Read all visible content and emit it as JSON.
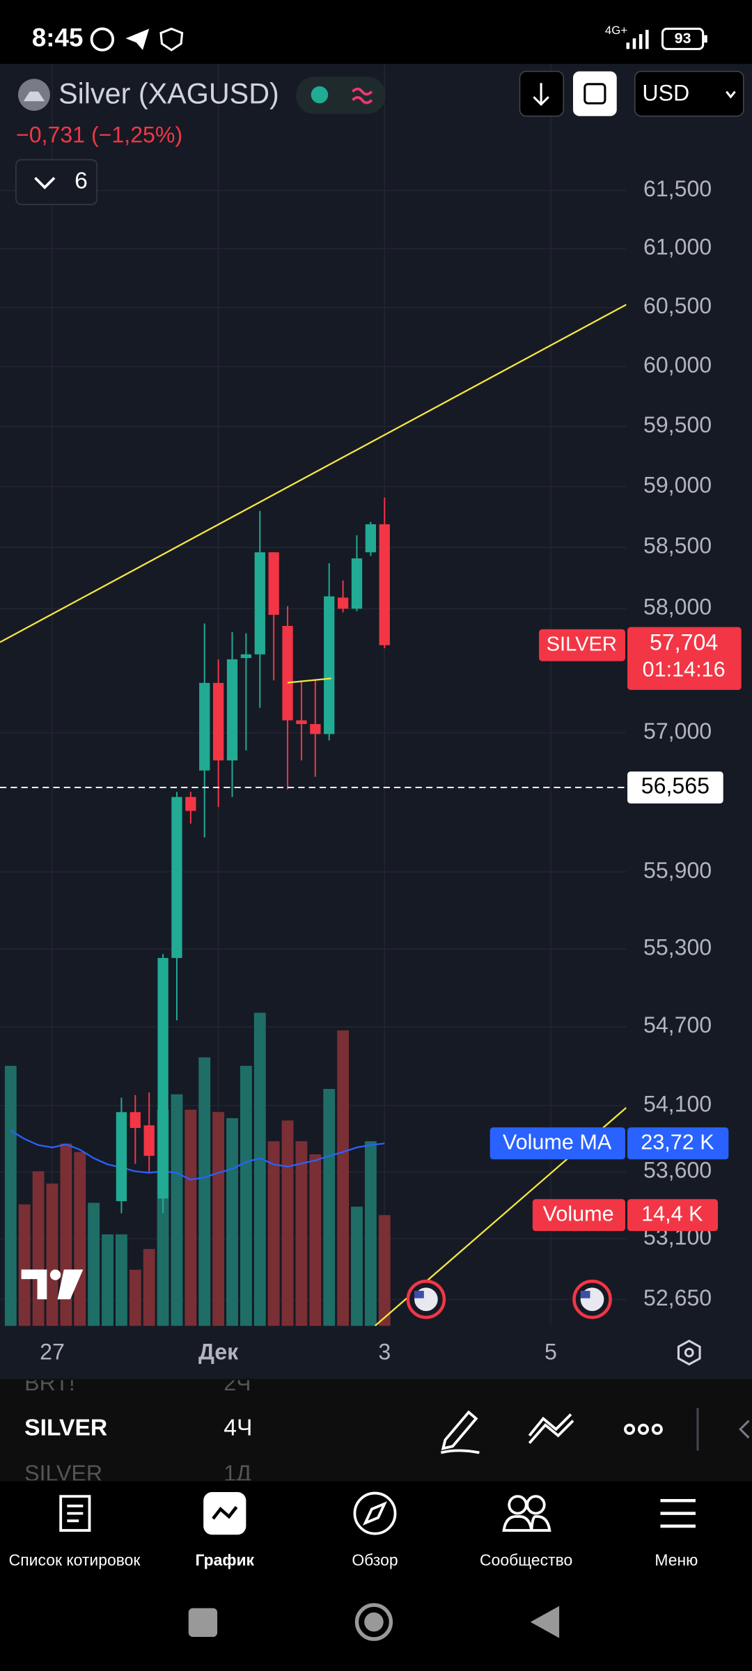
{
  "status_bar": {
    "time": "8:45",
    "network": "4G+",
    "battery": "93"
  },
  "header": {
    "symbol": "Silver (XAGUSD)",
    "change": "−0,731 (−1,25%)",
    "indicators_count": "6",
    "currency": "USD"
  },
  "chart_data": {
    "type": "candlestick",
    "log_scale": true,
    "grid": true,
    "ylim": [
      52455,
      62600
    ],
    "yticks": [
      {
        "value": 61500,
        "label": "61,500"
      },
      {
        "value": 61000,
        "label": "61,000"
      },
      {
        "value": 60500,
        "label": "60,500"
      },
      {
        "value": 60000,
        "label": "60,000"
      },
      {
        "value": 59500,
        "label": "59,500"
      },
      {
        "value": 59000,
        "label": "59,000"
      },
      {
        "value": 58500,
        "label": "58,500"
      },
      {
        "value": 58000,
        "label": "58,000"
      },
      {
        "value": 57000,
        "label": "57,000"
      },
      {
        "value": 55900,
        "label": "55,900"
      },
      {
        "value": 55300,
        "label": "55,300"
      },
      {
        "value": 54700,
        "label": "54,700"
      },
      {
        "value": 54100,
        "label": "54,100"
      },
      {
        "value": 53600,
        "label": "53,600"
      },
      {
        "value": 53100,
        "label": "53,100"
      },
      {
        "value": 52650,
        "label": "52,650"
      }
    ],
    "xlim": [
      -0.77,
      44.46
    ],
    "xticks": [
      {
        "value": 3,
        "label": "27"
      },
      {
        "value": 15,
        "label": "Дек"
      },
      {
        "value": 27,
        "label": "3"
      },
      {
        "value": 39,
        "label": "5"
      }
    ],
    "candles": {
      "up_color": "#22ab94",
      "down_color": "#f23645",
      "x": [
        8,
        9,
        10,
        11,
        12,
        13,
        14,
        15,
        16,
        17,
        18,
        19,
        20,
        21,
        22,
        23,
        24,
        25,
        26,
        27
      ],
      "open": [
        53380,
        54050,
        53950,
        53400,
        55230,
        56490,
        56700,
        57400,
        56780,
        57600,
        57630,
        58460,
        57860,
        57100,
        57070,
        56990,
        58090,
        58000,
        58460,
        58690
      ],
      "high": [
        54160,
        54180,
        54200,
        55260,
        56530,
        56530,
        57880,
        57590,
        57810,
        57800,
        58800,
        58460,
        58020,
        57420,
        57420,
        58370,
        58230,
        58600,
        58710,
        58910
      ],
      "low": [
        53290,
        53660,
        53600,
        53290,
        54750,
        56280,
        56170,
        56410,
        56490,
        56860,
        57200,
        57420,
        56550,
        56780,
        56650,
        56940,
        57970,
        57980,
        58430,
        57680
      ],
      "close": [
        54050,
        53930,
        53720,
        55230,
        56490,
        56380,
        57400,
        56780,
        57590,
        57630,
        58460,
        57950,
        57100,
        57070,
        56990,
        58100,
        58000,
        58410,
        58690,
        57704
      ]
    },
    "last_price": {
      "name": "SILVER",
      "value": 57704,
      "label": "57,704",
      "countdown": "01:14:16"
    },
    "prev_close": {
      "value": 56565,
      "label": "56,565"
    },
    "volume": {
      "name": "Volume",
      "ylim": [
        0,
        164
      ],
      "x": [
        0,
        1,
        2,
        3,
        4,
        5,
        6,
        7,
        8,
        9,
        10,
        11,
        12,
        13,
        14,
        15,
        16,
        17,
        18,
        19,
        20,
        21,
        22,
        23,
        24,
        25,
        26,
        27
      ],
      "values": [
        33.8,
        15.8,
        20.1,
        18.5,
        23.7,
        22.6,
        16.0,
        11.9,
        11.9,
        7.3,
        10.0,
        28.1,
        30.1,
        28.1,
        34.9,
        27.8,
        27.0,
        33.8,
        40.7,
        24.0,
        26.7,
        24.0,
        22.3,
        30.8,
        38.4,
        15.5,
        24.0,
        14.4
      ],
      "value_labels": [
        null,
        null,
        null,
        null,
        null,
        null,
        null,
        null,
        null,
        null,
        null,
        null,
        null,
        null,
        null,
        null,
        null,
        null,
        null,
        null,
        null,
        null,
        null,
        null,
        null,
        null,
        null,
        "14,4 K"
      ],
      "colors": [
        "#1e6e67",
        "#7a2f35",
        "#7a2f35",
        "#7a2f35",
        "#7a2f35",
        "#7a2f35",
        "#1e6e67",
        "#1e6e67",
        "#1e6e67",
        "#7a2f35",
        "#7a2f35",
        "#1e6e67",
        "#1e6e67",
        "#7a2f35",
        "#1e6e67",
        "#7a2f35",
        "#1e6e67",
        "#1e6e67",
        "#1e6e67",
        "#7a2f35",
        "#7a2f35",
        "#7a2f35",
        "#7a2f35",
        "#1e6e67",
        "#7a2f35",
        "#1e6e67",
        "#1e6e67",
        "#7a2f35"
      ],
      "badge_color": "#f23645"
    },
    "volume_ma": {
      "name": "Volume MA",
      "color": "#2962ff",
      "values": [
        25.4,
        24.3,
        23.5,
        23.2,
        23.6,
        22.9,
        21.8,
        21.0,
        20.6,
        20.1,
        19.9,
        20.1,
        19.9,
        19.0,
        19.3,
        19.9,
        20.4,
        21.3,
        21.8,
        21.0,
        20.7,
        21.1,
        21.5,
        22.1,
        22.6,
        23.2,
        23.5,
        23.72
      ],
      "value_labels": [
        null,
        null,
        null,
        null,
        null,
        null,
        null,
        null,
        null,
        null,
        null,
        null,
        null,
        null,
        null,
        null,
        null,
        null,
        null,
        null,
        null,
        null,
        null,
        null,
        null,
        null,
        null,
        "23,72 K"
      ]
    }
  },
  "watchlist": [
    {
      "symbol": "BRT!",
      "interval": "2Ч"
    },
    {
      "symbol": "SILVER",
      "interval": "4Ч"
    },
    {
      "symbol": "SILVER",
      "interval": "1Д"
    }
  ],
  "nav": [
    "Список котировок",
    "График",
    "Обзор",
    "Сообщество",
    "Меню"
  ]
}
